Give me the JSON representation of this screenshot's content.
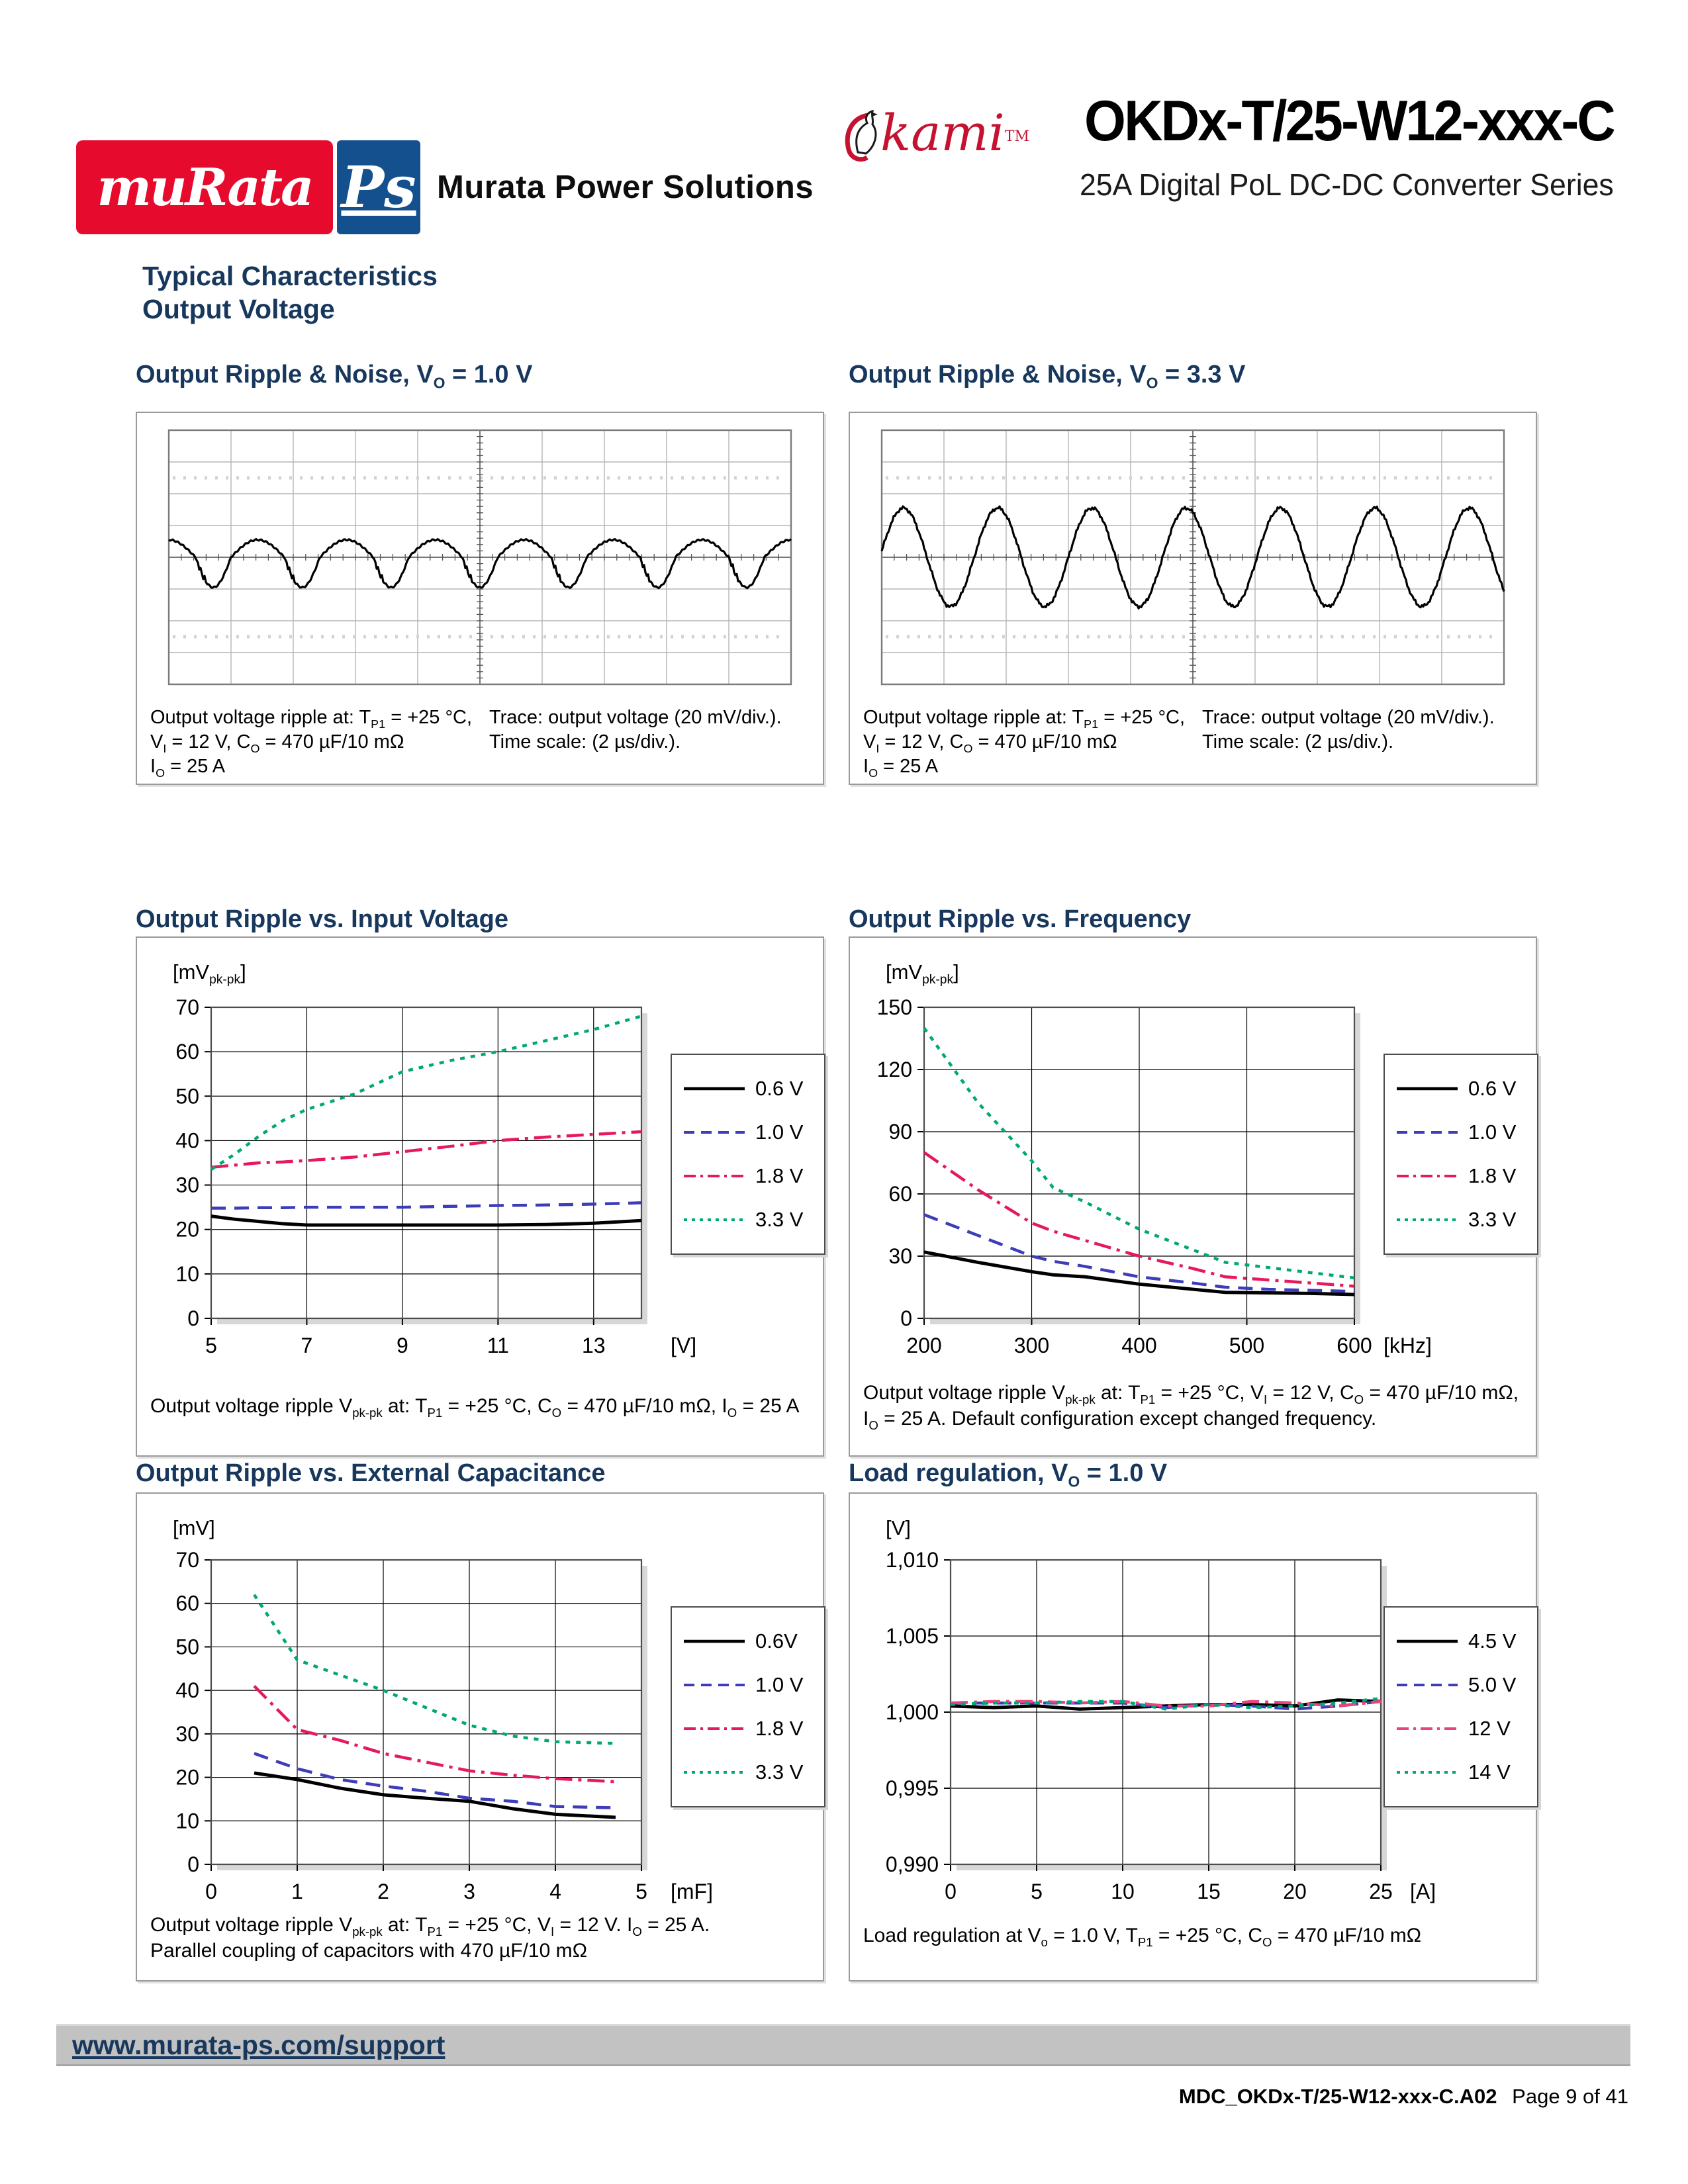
{
  "header": {
    "logo_murata": "muRata",
    "logo_ps": "Ps",
    "brand": "Murata Power Solutions",
    "okami": "kami",
    "tm": "TM",
    "product": "OKDx-T/25-W12-xxx-C",
    "series": "25A Digital PoL DC-DC Converter Series"
  },
  "section": {
    "title": "Typical Characteristics",
    "subtitle": "Output Voltage"
  },
  "footer": {
    "support_url": "www.murata-ps.com/support",
    "doc_id": "MDC_OKDx-T/25-W12-xxx-C.A02",
    "page": "Page 9 of 41"
  },
  "colors": {
    "heading_blue": "#17375d",
    "murata_red": "#e60a2d",
    "ps_blue": "#15508e",
    "okami_crimson": "#c41230",
    "footer_bar_gray": "#c2c2c2",
    "series_black": "#000000",
    "series_blue": "#3d3dba",
    "series_crimson": "#e4195e",
    "series_green": "#00a878",
    "series_pink": "#e8447f"
  },
  "chart_data": [
    {
      "type": "scope",
      "title_rich": [
        [
          "t",
          "Output Ripple & Noise, V"
        ],
        [
          "s",
          "O"
        ],
        [
          "t",
          " = 1.0 V"
        ]
      ],
      "v_per_div_mV": 20,
      "t_per_div_us": 2,
      "divisions_x": 10,
      "divisions_y": 8,
      "cycles_visible": 7,
      "peak_mV": 11,
      "trough_mV": -19,
      "pkpk_mV": 30,
      "waveform": "switching-ripple",
      "caption_left": [
        [
          [
            "t",
            "Output voltage ripple at: T"
          ],
          [
            "s",
            "P1"
          ],
          [
            "t",
            " = +25 °C,"
          ]
        ],
        [
          [
            "t",
            "V"
          ],
          [
            "s",
            "I"
          ],
          [
            "t",
            " =  12 V, C"
          ],
          [
            "s",
            "O"
          ],
          [
            "t",
            " = 470 µF/10 mΩ"
          ]
        ],
        [
          [
            "t",
            "I"
          ],
          [
            "s",
            "O"
          ],
          [
            "t",
            " = 25 A"
          ]
        ]
      ],
      "caption_right": [
        [
          [
            "t",
            "Trace: output voltage (20 mV/div.)."
          ]
        ],
        [
          [
            "t",
            "Time scale: (2 µs/div.)."
          ]
        ]
      ]
    },
    {
      "type": "scope",
      "title_rich": [
        [
          "t",
          "Output Ripple & Noise, V"
        ],
        [
          "s",
          "O"
        ],
        [
          "t",
          " = 3.3 V"
        ]
      ],
      "v_per_div_mV": 20,
      "t_per_div_us": 2,
      "divisions_x": 10,
      "divisions_y": 8,
      "cycles_visible": 6.6,
      "peak_mV": 31,
      "trough_mV": -31,
      "pkpk_mV": 62,
      "waveform": "sine-ripple",
      "caption_left": [
        [
          [
            "t",
            "Output voltage ripple at: T"
          ],
          [
            "s",
            "P1"
          ],
          [
            "t",
            " = +25 °C,"
          ]
        ],
        [
          [
            "t",
            "V"
          ],
          [
            "s",
            "I"
          ],
          [
            "t",
            " =  12 V, C"
          ],
          [
            "s",
            "O"
          ],
          [
            "t",
            " = 470 µF/10 mΩ"
          ]
        ],
        [
          [
            "t",
            "I"
          ],
          [
            "s",
            "O"
          ],
          [
            "t",
            " = 25 A"
          ]
        ]
      ],
      "caption_right": [
        [
          [
            "t",
            "Trace: output voltage (20 mV/div.)."
          ]
        ],
        [
          [
            "t",
            "Time scale: (2 µs/div.)."
          ]
        ]
      ]
    },
    {
      "type": "line",
      "title_rich": [
        [
          "t",
          "Output Ripple vs. Input Voltage"
        ]
      ],
      "ylabel_rich": [
        [
          "t",
          "[mV"
        ],
        [
          "s",
          "pk-pk"
        ],
        [
          "t",
          "]"
        ]
      ],
      "xlabel": "[V]",
      "xlim": [
        5,
        14
      ],
      "ylim": [
        0,
        70
      ],
      "xticks": [
        5,
        7,
        9,
        11,
        13
      ],
      "xgrid": [
        7,
        9,
        11,
        13
      ],
      "yticks": [
        0,
        10,
        20,
        30,
        40,
        50,
        60,
        70
      ],
      "ytick_labels": [
        "0",
        "10",
        "20",
        "30",
        "40",
        "50",
        "60",
        "70"
      ],
      "grid": true,
      "legend_position": "right",
      "x": [
        5,
        5.5,
        6,
        6.5,
        7,
        8,
        9,
        10,
        11,
        12,
        13,
        14
      ],
      "series": [
        {
          "name": "0.6 V",
          "color": "#000000",
          "dash": "solid",
          "width": 5,
          "values": [
            23,
            22.3,
            21.8,
            21.3,
            21,
            21,
            21,
            21,
            21,
            21.1,
            21.4,
            22
          ]
        },
        {
          "name": "1.0 V",
          "color": "#3d3dba",
          "dash": "dash",
          "width": 4.5,
          "values": [
            24.8,
            24.8,
            24.9,
            24.9,
            25,
            25,
            25,
            25.2,
            25.4,
            25.5,
            25.7,
            26
          ]
        },
        {
          "name": "1.8 V",
          "color": "#e4195e",
          "dash": "dashdot",
          "width": 4.5,
          "values": [
            34,
            34.5,
            35,
            35.2,
            35.5,
            36.3,
            37.5,
            38.7,
            40,
            40.8,
            41.4,
            42
          ]
        },
        {
          "name": "3.3 V",
          "color": "#00a878",
          "dash": "dot",
          "width": 4.5,
          "values": [
            33.5,
            37,
            41,
            44.5,
            47,
            50.5,
            55.5,
            58,
            60,
            62.5,
            65,
            68
          ]
        }
      ],
      "caption": [
        [
          [
            "t",
            "Output voltage ripple V"
          ],
          [
            "s",
            "pk-pk"
          ],
          [
            "t",
            " at: T"
          ],
          [
            "s",
            "P1"
          ],
          [
            "t",
            " = +25 °C, C"
          ],
          [
            "s",
            "O"
          ],
          [
            "t",
            " = 470 µF/10 mΩ, I"
          ],
          [
            "s",
            "O"
          ],
          [
            "t",
            " = 25 A"
          ]
        ]
      ]
    },
    {
      "type": "line",
      "title_rich": [
        [
          "t",
          "Output Ripple vs. Frequency"
        ]
      ],
      "ylabel_rich": [
        [
          "t",
          "[mV"
        ],
        [
          "s",
          "pk-pk"
        ],
        [
          "t",
          "]"
        ]
      ],
      "xlabel": "[kHz]",
      "xlim": [
        200,
        600
      ],
      "ylim": [
        0,
        150
      ],
      "xticks": [
        200,
        300,
        400,
        500,
        600
      ],
      "xgrid": [
        300,
        400,
        500
      ],
      "yticks": [
        0,
        30,
        60,
        90,
        120,
        150
      ],
      "ytick_labels": [
        "0",
        "30",
        "60",
        "90",
        "120",
        "150"
      ],
      "grid": true,
      "legend_position": "right",
      "x": [
        200,
        250,
        300,
        320,
        350,
        400,
        450,
        480,
        520,
        560,
        600
      ],
      "series": [
        {
          "name": "0.6 V",
          "color": "#000000",
          "dash": "solid",
          "width": 5,
          "values": [
            32,
            27,
            22.5,
            21,
            20,
            16.5,
            14,
            12.5,
            12.3,
            12,
            11.5
          ]
        },
        {
          "name": "1.0 V",
          "color": "#3d3dba",
          "dash": "dash",
          "width": 4.5,
          "values": [
            50,
            40,
            30,
            27.5,
            25,
            20,
            17,
            15,
            14,
            13.5,
            13
          ]
        },
        {
          "name": "1.8 V",
          "color": "#e4195e",
          "dash": "dashdot",
          "width": 4.5,
          "values": [
            80,
            62,
            46,
            42,
            37.5,
            30,
            24,
            20,
            18.5,
            17,
            15.5
          ]
        },
        {
          "name": "3.3 V",
          "color": "#00a878",
          "dash": "dot",
          "width": 4.5,
          "values": [
            140,
            104,
            76,
            63,
            56,
            43,
            33,
            27,
            24.5,
            22,
            19.5
          ]
        }
      ],
      "caption": [
        [
          [
            "t",
            "Output voltage ripple V"
          ],
          [
            "s",
            "pk-pk"
          ],
          [
            "t",
            " at: T"
          ],
          [
            "s",
            "P1"
          ],
          [
            "t",
            " = +25 °C, V"
          ],
          [
            "s",
            "I"
          ],
          [
            "t",
            " = 12 V, C"
          ],
          [
            "s",
            "O"
          ],
          [
            "t",
            " = 470 µF/10 mΩ,"
          ]
        ],
        [
          [
            "t",
            "I"
          ],
          [
            "s",
            "O"
          ],
          [
            "t",
            " = 25 A. Default configuration except changed frequency."
          ]
        ]
      ]
    },
    {
      "type": "line",
      "title_rich": [
        [
          "t",
          "Output Ripple vs. External Capacitance"
        ]
      ],
      "ylabel_rich": [
        [
          "t",
          "[mV]"
        ]
      ],
      "xlabel": "[mF]",
      "xlim": [
        0,
        5
      ],
      "ylim": [
        0,
        70
      ],
      "xticks": [
        0,
        1,
        2,
        3,
        4,
        5
      ],
      "xgrid": [
        1,
        2,
        3,
        4
      ],
      "yticks": [
        0,
        10,
        20,
        30,
        40,
        50,
        60,
        70
      ],
      "ytick_labels": [
        "0",
        "10",
        "20",
        "30",
        "40",
        "50",
        "60",
        "70"
      ],
      "grid": true,
      "legend_position": "right",
      "x": [
        0.5,
        1,
        1.5,
        2,
        2.5,
        3,
        3.5,
        4,
        4.7
      ],
      "series": [
        {
          "name": "0.6V",
          "color": "#000000",
          "dash": "solid",
          "width": 5,
          "values": [
            21,
            19.5,
            17.5,
            16,
            15.2,
            14.5,
            12.8,
            11.5,
            10.8
          ]
        },
        {
          "name": "1.0 V",
          "color": "#3d3dba",
          "dash": "dash",
          "width": 4.5,
          "values": [
            25.5,
            22,
            19.5,
            18,
            16.8,
            15.2,
            14.5,
            13.3,
            13
          ]
        },
        {
          "name": "1.8 V",
          "color": "#e4195e",
          "dash": "dashdot",
          "width": 4.5,
          "values": [
            41,
            31,
            28.5,
            25.5,
            23.5,
            21.5,
            20.5,
            19.7,
            19
          ]
        },
        {
          "name": "3.3 V",
          "color": "#00a878",
          "dash": "dot",
          "width": 4.5,
          "values": [
            62,
            47,
            43.5,
            40,
            36,
            32,
            29.5,
            28.2,
            27.8
          ]
        }
      ],
      "caption": [
        [
          [
            "t",
            "Output voltage ripple V"
          ],
          [
            "s",
            "pk-pk"
          ],
          [
            "t",
            " at: T"
          ],
          [
            "s",
            "P1"
          ],
          [
            "t",
            " = +25 °C, V"
          ],
          [
            "s",
            "I"
          ],
          [
            "t",
            " = 12 V. I"
          ],
          [
            "s",
            "O"
          ],
          [
            "t",
            " = 25 A."
          ]
        ],
        [
          [
            "t",
            "Parallel coupling of capacitors with 470 µF/10 mΩ"
          ]
        ]
      ]
    },
    {
      "type": "line",
      "title_rich": [
        [
          "t",
          "Load regulation, V"
        ],
        [
          "s",
          "O"
        ],
        [
          "t",
          " = 1.0 V"
        ]
      ],
      "ylabel_rich": [
        [
          "t",
          "[V]"
        ]
      ],
      "xlabel": "[A]",
      "xlim": [
        0,
        25
      ],
      "ylim": [
        0.99,
        1.01
      ],
      "xticks": [
        0,
        5,
        10,
        15,
        20,
        25
      ],
      "xgrid": [
        5,
        10,
        15,
        20
      ],
      "yticks": [
        0.99,
        0.995,
        1.0,
        1.005,
        1.01
      ],
      "ytick_labels": [
        "0,990",
        "0,995",
        "1,000",
        "1,005",
        "1,010"
      ],
      "grid": true,
      "legend_position": "right",
      "x": [
        0,
        2.5,
        5,
        7.5,
        10,
        12.5,
        15,
        17.5,
        20,
        22.5,
        25
      ],
      "series": [
        {
          "name": "4.5 V",
          "color": "#000000",
          "dash": "solid",
          "width": 5,
          "values": [
            1.0004,
            1.0003,
            1.0004,
            1.0002,
            1.0003,
            1.0004,
            1.0005,
            1.0005,
            1.0004,
            1.0008,
            1.0007
          ]
        },
        {
          "name": "5.0 V",
          "color": "#3d3dba",
          "dash": "dash",
          "width": 4.5,
          "values": [
            1.0006,
            1.0006,
            1.0006,
            1.0006,
            1.0006,
            1.0003,
            1.0005,
            1.0004,
            1.0002,
            1.0004,
            1.0007
          ]
        },
        {
          "name": "12 V",
          "color": "#e8447f",
          "dash": "dashdot",
          "width": 4.5,
          "values": [
            1.0006,
            1.0007,
            1.0007,
            1.0006,
            1.0007,
            1.0004,
            1.0004,
            1.0007,
            1.0006,
            1.0004,
            1.0007
          ]
        },
        {
          "name": "14 V",
          "color": "#00a878",
          "dash": "dot",
          "width": 4.5,
          "values": [
            1.0005,
            1.0006,
            1.0006,
            1.0007,
            1.0007,
            1.0002,
            1.0005,
            1.0003,
            1.0004,
            1.0006,
            1.0009
          ]
        }
      ],
      "caption": [
        [
          [
            "t",
            "Load regulation at V"
          ],
          [
            "s",
            "o"
          ],
          [
            "t",
            " = 1.0 V, T"
          ],
          [
            "s",
            "P1"
          ],
          [
            "t",
            " = +25 °C, C"
          ],
          [
            "s",
            "O"
          ],
          [
            "t",
            " = 470 µF/10 mΩ"
          ]
        ]
      ]
    }
  ]
}
